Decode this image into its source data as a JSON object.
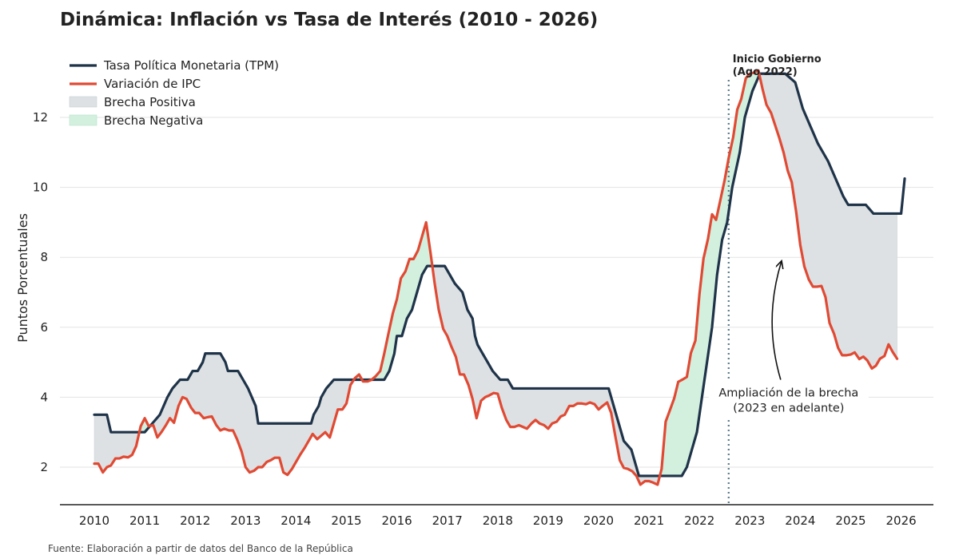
{
  "chart_data": {
    "type": "line",
    "title": "Dinámica: Inflación vs Tasa de Interés (2010 - 2026)",
    "xlabel": "",
    "ylabel": "Puntos Porcentuales",
    "x_ticks": [
      "2010",
      "2011",
      "2012",
      "2013",
      "2014",
      "2015",
      "2016",
      "2017",
      "2018",
      "2019",
      "2020",
      "2021",
      "2022",
      "2023",
      "2024",
      "2025",
      "2026"
    ],
    "y_ticks": [
      "2",
      "4",
      "6",
      "8",
      "10",
      "12"
    ],
    "xlim": [
      2009.7,
      2026.6
    ],
    "ylim": [
      0.9,
      13.0
    ],
    "grid": "horizontal",
    "legend_position": "top-left",
    "legend": [
      {
        "label": "Tasa Política Monetaria (TPM)",
        "kind": "line",
        "color": "#1f3349"
      },
      {
        "label": "Variación de IPC",
        "kind": "line",
        "color": "#e04a34"
      },
      {
        "label": "Brecha Positiva",
        "kind": "fill",
        "color": "#dde1e3"
      },
      {
        "label": "Brecha Negativa",
        "kind": "fill",
        "color": "#d3f0de"
      }
    ],
    "series": [
      {
        "name": "Tasa Política Monetaria (TPM)",
        "color": "#1f3349",
        "points": [
          [
            2010.0,
            3.5
          ],
          [
            2010.25,
            3.5
          ],
          [
            2010.33,
            3.0
          ],
          [
            2010.5,
            3.0
          ],
          [
            2011.0,
            3.0
          ],
          [
            2011.15,
            3.25
          ],
          [
            2011.3,
            3.5
          ],
          [
            2011.45,
            4.0
          ],
          [
            2011.55,
            4.25
          ],
          [
            2011.7,
            4.5
          ],
          [
            2011.85,
            4.5
          ],
          [
            2011.95,
            4.75
          ],
          [
            2012.05,
            4.75
          ],
          [
            2012.15,
            5.0
          ],
          [
            2012.2,
            5.25
          ],
          [
            2012.5,
            5.25
          ],
          [
            2012.6,
            5.0
          ],
          [
            2012.65,
            4.75
          ],
          [
            2012.85,
            4.75
          ],
          [
            2012.95,
            4.5
          ],
          [
            2013.05,
            4.25
          ],
          [
            2013.2,
            3.75
          ],
          [
            2013.25,
            3.25
          ],
          [
            2014.3,
            3.25
          ],
          [
            2014.35,
            3.5
          ],
          [
            2014.45,
            3.75
          ],
          [
            2014.5,
            4.0
          ],
          [
            2014.6,
            4.25
          ],
          [
            2014.75,
            4.5
          ],
          [
            2015.75,
            4.5
          ],
          [
            2015.85,
            4.75
          ],
          [
            2015.95,
            5.25
          ],
          [
            2016.0,
            5.75
          ],
          [
            2016.1,
            5.75
          ],
          [
            2016.2,
            6.25
          ],
          [
            2016.3,
            6.5
          ],
          [
            2016.4,
            7.0
          ],
          [
            2016.5,
            7.5
          ],
          [
            2016.6,
            7.75
          ],
          [
            2016.95,
            7.75
          ],
          [
            2017.05,
            7.5
          ],
          [
            2017.15,
            7.25
          ],
          [
            2017.3,
            7.0
          ],
          [
            2017.4,
            6.5
          ],
          [
            2017.5,
            6.25
          ],
          [
            2017.55,
            5.75
          ],
          [
            2017.6,
            5.5
          ],
          [
            2017.7,
            5.25
          ],
          [
            2017.8,
            5.0
          ],
          [
            2017.9,
            4.75
          ],
          [
            2018.05,
            4.5
          ],
          [
            2018.2,
            4.5
          ],
          [
            2018.3,
            4.25
          ],
          [
            2020.2,
            4.25
          ],
          [
            2020.3,
            3.75
          ],
          [
            2020.4,
            3.25
          ],
          [
            2020.5,
            2.75
          ],
          [
            2020.65,
            2.5
          ],
          [
            2020.75,
            2.0
          ],
          [
            2020.8,
            1.75
          ],
          [
            2021.65,
            1.75
          ],
          [
            2021.75,
            2.0
          ],
          [
            2021.85,
            2.5
          ],
          [
            2021.95,
            3.0
          ],
          [
            2022.05,
            4.0
          ],
          [
            2022.15,
            5.0
          ],
          [
            2022.25,
            6.0
          ],
          [
            2022.35,
            7.5
          ],
          [
            2022.45,
            8.5
          ],
          [
            2022.55,
            9.0
          ],
          [
            2022.65,
            10.0
          ],
          [
            2022.8,
            11.0
          ],
          [
            2022.9,
            12.0
          ],
          [
            2023.05,
            12.75
          ],
          [
            2023.2,
            13.25
          ],
          [
            2023.7,
            13.25
          ],
          [
            2023.9,
            13.0
          ],
          [
            2024.05,
            12.25
          ],
          [
            2024.2,
            11.75
          ],
          [
            2024.35,
            11.25
          ],
          [
            2024.55,
            10.75
          ],
          [
            2024.7,
            10.25
          ],
          [
            2024.85,
            9.75
          ],
          [
            2024.95,
            9.5
          ],
          [
            2025.3,
            9.5
          ],
          [
            2025.45,
            9.25
          ],
          [
            2026.0,
            9.25
          ],
          [
            2026.07,
            10.25
          ]
        ]
      },
      {
        "name": "Variación de IPC",
        "color": "#e04a34",
        "points": [
          [
            2010.0,
            2.1
          ],
          [
            2010.08,
            2.1
          ],
          [
            2010.17,
            1.85
          ],
          [
            2010.25,
            2.0
          ],
          [
            2010.33,
            2.05
          ],
          [
            2010.42,
            2.25
          ],
          [
            2010.5,
            2.25
          ],
          [
            2010.58,
            2.3
          ],
          [
            2010.67,
            2.28
          ],
          [
            2010.75,
            2.35
          ],
          [
            2010.83,
            2.6
          ],
          [
            2010.92,
            3.17
          ],
          [
            2011.0,
            3.4
          ],
          [
            2011.08,
            3.17
          ],
          [
            2011.17,
            3.2
          ],
          [
            2011.25,
            2.85
          ],
          [
            2011.33,
            3.0
          ],
          [
            2011.42,
            3.2
          ],
          [
            2011.5,
            3.4
          ],
          [
            2011.58,
            3.27
          ],
          [
            2011.67,
            3.75
          ],
          [
            2011.75,
            4.0
          ],
          [
            2011.83,
            3.95
          ],
          [
            2011.92,
            3.7
          ],
          [
            2012.0,
            3.55
          ],
          [
            2012.08,
            3.55
          ],
          [
            2012.17,
            3.4
          ],
          [
            2012.25,
            3.43
          ],
          [
            2012.33,
            3.45
          ],
          [
            2012.42,
            3.2
          ],
          [
            2012.5,
            3.05
          ],
          [
            2012.58,
            3.1
          ],
          [
            2012.67,
            3.05
          ],
          [
            2012.75,
            3.05
          ],
          [
            2012.83,
            2.8
          ],
          [
            2012.92,
            2.45
          ],
          [
            2013.0,
            2.0
          ],
          [
            2013.08,
            1.85
          ],
          [
            2013.17,
            1.9
          ],
          [
            2013.25,
            2.0
          ],
          [
            2013.33,
            2.0
          ],
          [
            2013.42,
            2.15
          ],
          [
            2013.5,
            2.2
          ],
          [
            2013.58,
            2.27
          ],
          [
            2013.67,
            2.27
          ],
          [
            2013.75,
            1.85
          ],
          [
            2013.83,
            1.78
          ],
          [
            2013.92,
            1.95
          ],
          [
            2014.0,
            2.15
          ],
          [
            2014.08,
            2.35
          ],
          [
            2014.17,
            2.55
          ],
          [
            2014.25,
            2.75
          ],
          [
            2014.33,
            2.95
          ],
          [
            2014.42,
            2.8
          ],
          [
            2014.5,
            2.9
          ],
          [
            2014.58,
            3.0
          ],
          [
            2014.67,
            2.85
          ],
          [
            2014.75,
            3.25
          ],
          [
            2014.83,
            3.65
          ],
          [
            2014.92,
            3.65
          ],
          [
            2015.0,
            3.82
          ],
          [
            2015.08,
            4.35
          ],
          [
            2015.17,
            4.55
          ],
          [
            2015.25,
            4.65
          ],
          [
            2015.33,
            4.45
          ],
          [
            2015.42,
            4.45
          ],
          [
            2015.5,
            4.5
          ],
          [
            2015.58,
            4.6
          ],
          [
            2015.67,
            4.75
          ],
          [
            2015.75,
            5.25
          ],
          [
            2015.83,
            5.8
          ],
          [
            2015.92,
            6.4
          ],
          [
            2016.0,
            6.8
          ],
          [
            2016.08,
            7.4
          ],
          [
            2016.17,
            7.6
          ],
          [
            2016.25,
            7.95
          ],
          [
            2016.33,
            7.95
          ],
          [
            2016.42,
            8.2
          ],
          [
            2016.5,
            8.6
          ],
          [
            2016.58,
            9.0
          ],
          [
            2016.67,
            8.1
          ],
          [
            2016.75,
            7.25
          ],
          [
            2016.83,
            6.5
          ],
          [
            2016.92,
            5.95
          ],
          [
            2017.0,
            5.75
          ],
          [
            2017.08,
            5.45
          ],
          [
            2017.17,
            5.15
          ],
          [
            2017.25,
            4.65
          ],
          [
            2017.33,
            4.65
          ],
          [
            2017.42,
            4.35
          ],
          [
            2017.5,
            3.95
          ],
          [
            2017.58,
            3.4
          ],
          [
            2017.67,
            3.9
          ],
          [
            2017.75,
            4.0
          ],
          [
            2017.83,
            4.05
          ],
          [
            2017.92,
            4.12
          ],
          [
            2018.0,
            4.1
          ],
          [
            2018.08,
            3.7
          ],
          [
            2018.17,
            3.35
          ],
          [
            2018.25,
            3.15
          ],
          [
            2018.33,
            3.15
          ],
          [
            2018.42,
            3.2
          ],
          [
            2018.5,
            3.15
          ],
          [
            2018.58,
            3.1
          ],
          [
            2018.67,
            3.25
          ],
          [
            2018.75,
            3.35
          ],
          [
            2018.83,
            3.25
          ],
          [
            2018.92,
            3.2
          ],
          [
            2019.0,
            3.1
          ],
          [
            2019.08,
            3.25
          ],
          [
            2019.17,
            3.3
          ],
          [
            2019.25,
            3.45
          ],
          [
            2019.33,
            3.5
          ],
          [
            2019.42,
            3.75
          ],
          [
            2019.5,
            3.75
          ],
          [
            2019.58,
            3.82
          ],
          [
            2019.67,
            3.82
          ],
          [
            2019.75,
            3.8
          ],
          [
            2019.83,
            3.85
          ],
          [
            2019.92,
            3.8
          ],
          [
            2020.0,
            3.65
          ],
          [
            2020.08,
            3.75
          ],
          [
            2020.17,
            3.85
          ],
          [
            2020.25,
            3.55
          ],
          [
            2020.33,
            2.9
          ],
          [
            2020.42,
            2.2
          ],
          [
            2020.5,
            1.98
          ],
          [
            2020.58,
            1.95
          ],
          [
            2020.67,
            1.88
          ],
          [
            2020.75,
            1.75
          ],
          [
            2020.83,
            1.5
          ],
          [
            2020.92,
            1.6
          ],
          [
            2021.0,
            1.6
          ],
          [
            2021.08,
            1.56
          ],
          [
            2021.17,
            1.5
          ],
          [
            2021.25,
            1.95
          ],
          [
            2021.33,
            3.3
          ],
          [
            2021.42,
            3.65
          ],
          [
            2021.5,
            3.97
          ],
          [
            2021.58,
            4.44
          ],
          [
            2021.67,
            4.51
          ],
          [
            2021.75,
            4.58
          ],
          [
            2021.83,
            5.26
          ],
          [
            2021.92,
            5.62
          ],
          [
            2022.0,
            6.94
          ],
          [
            2022.08,
            7.96
          ],
          [
            2022.17,
            8.53
          ],
          [
            2022.25,
            9.23
          ],
          [
            2022.33,
            9.07
          ],
          [
            2022.42,
            9.67
          ],
          [
            2022.5,
            10.21
          ],
          [
            2022.58,
            10.84
          ],
          [
            2022.67,
            11.44
          ],
          [
            2022.75,
            12.22
          ],
          [
            2022.83,
            12.53
          ],
          [
            2022.92,
            13.12
          ],
          [
            2023.0,
            13.25
          ],
          [
            2023.08,
            13.28
          ],
          [
            2023.17,
            13.34
          ],
          [
            2023.25,
            12.82
          ],
          [
            2023.33,
            12.36
          ],
          [
            2023.42,
            12.13
          ],
          [
            2023.5,
            11.78
          ],
          [
            2023.58,
            11.43
          ],
          [
            2023.67,
            10.99
          ],
          [
            2023.75,
            10.48
          ],
          [
            2023.83,
            10.15
          ],
          [
            2023.92,
            9.28
          ],
          [
            2024.0,
            8.35
          ],
          [
            2024.08,
            7.74
          ],
          [
            2024.17,
            7.36
          ],
          [
            2024.25,
            7.16
          ],
          [
            2024.33,
            7.16
          ],
          [
            2024.42,
            7.18
          ],
          [
            2024.5,
            6.86
          ],
          [
            2024.58,
            6.12
          ],
          [
            2024.67,
            5.81
          ],
          [
            2024.75,
            5.41
          ],
          [
            2024.83,
            5.2
          ],
          [
            2024.92,
            5.2
          ],
          [
            2025.0,
            5.22
          ],
          [
            2025.08,
            5.28
          ],
          [
            2025.17,
            5.09
          ],
          [
            2025.25,
            5.16
          ],
          [
            2025.33,
            5.05
          ],
          [
            2025.42,
            4.82
          ],
          [
            2025.5,
            4.9
          ],
          [
            2025.58,
            5.1
          ],
          [
            2025.67,
            5.18
          ],
          [
            2025.75,
            5.51
          ],
          [
            2025.83,
            5.3
          ],
          [
            2025.92,
            5.1
          ]
        ]
      }
    ],
    "annotations": [
      {
        "kind": "vline",
        "x": 2022.58,
        "style": "dotted",
        "color": "#5a7a8a",
        "label": "Inicio Gobierno\n(Ago 2022)"
      },
      {
        "kind": "arrow",
        "from": [
          2023.5,
          4.5
        ],
        "to": [
          2023.63,
          7.9
        ],
        "label": "Ampliación de la brecha\n(2023 en adelante)"
      }
    ]
  },
  "footer": {
    "source": "Fuente: Elaboración a partir de datos del Banco de la República"
  }
}
